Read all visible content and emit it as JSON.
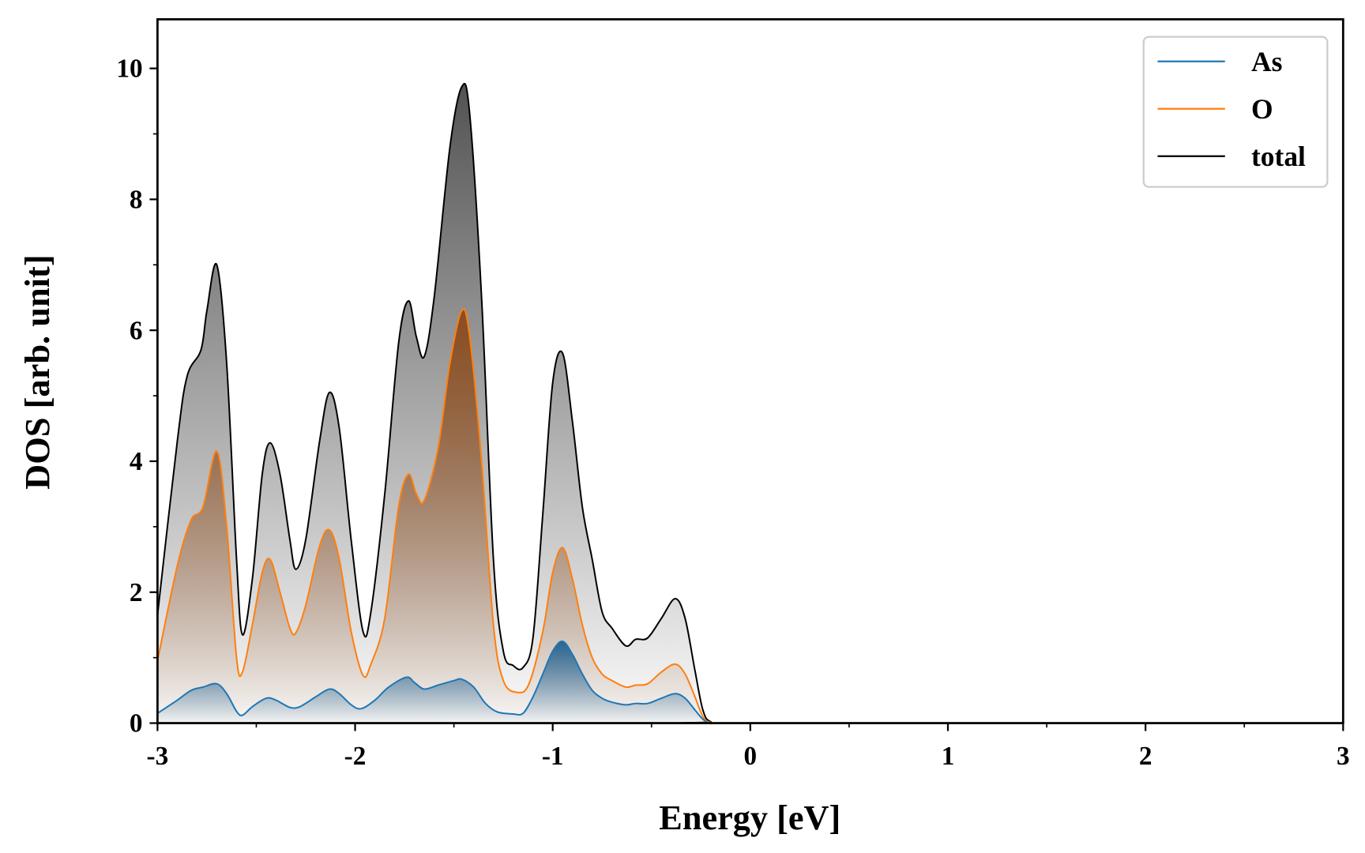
{
  "chart_data": {
    "type": "area",
    "title": "",
    "xlabel": "Energy [eV]",
    "ylabel": "DOS [arb. unit]",
    "xlim": [
      -3,
      3
    ],
    "ylim": [
      0,
      10.75
    ],
    "xticks": [
      -3,
      -2,
      -1,
      0,
      1,
      2,
      3
    ],
    "xtick_labels": [
      "-3",
      "-2",
      "-1",
      "0",
      "1",
      "2",
      "3"
    ],
    "yticks": [
      0,
      2,
      4,
      6,
      8,
      10
    ],
    "ytick_labels": [
      "0",
      "2",
      "4",
      "6",
      "8",
      "10"
    ],
    "grid": false,
    "legend_position": "top-right",
    "series": [
      {
        "name": "As",
        "color": "#1f77b4",
        "fill": "#1f5f8f",
        "x": [
          -3,
          -2.9,
          -2.83,
          -2.77,
          -2.7,
          -2.65,
          -2.6,
          -2.57,
          -2.52,
          -2.45,
          -2.4,
          -2.33,
          -2.28,
          -2.2,
          -2.13,
          -2.08,
          -2.02,
          -1.97,
          -1.9,
          -1.83,
          -1.74,
          -1.7,
          -1.65,
          -1.58,
          -1.5,
          -1.46,
          -1.4,
          -1.34,
          -1.28,
          -1.2,
          -1.15,
          -1.1,
          -1.05,
          -1.0,
          -0.95,
          -0.9,
          -0.85,
          -0.8,
          -0.75,
          -0.7,
          -0.63,
          -0.58,
          -0.52,
          -0.45,
          -0.38,
          -0.33,
          -0.28,
          -0.24,
          -0.2,
          -0.1,
          3
        ],
        "y": [
          0.15,
          0.35,
          0.5,
          0.55,
          0.6,
          0.45,
          0.18,
          0.12,
          0.25,
          0.38,
          0.35,
          0.24,
          0.25,
          0.4,
          0.52,
          0.45,
          0.28,
          0.22,
          0.35,
          0.55,
          0.7,
          0.62,
          0.52,
          0.58,
          0.65,
          0.67,
          0.55,
          0.3,
          0.17,
          0.14,
          0.15,
          0.4,
          0.75,
          1.1,
          1.25,
          1.05,
          0.75,
          0.5,
          0.38,
          0.32,
          0.28,
          0.3,
          0.3,
          0.38,
          0.45,
          0.38,
          0.2,
          0.06,
          0.0,
          0,
          0
        ]
      },
      {
        "name": "O",
        "color": "#ff7f0e",
        "fill": "#8b4a1a",
        "x": [
          -3,
          -2.9,
          -2.83,
          -2.77,
          -2.7,
          -2.65,
          -2.6,
          -2.57,
          -2.52,
          -2.47,
          -2.43,
          -2.38,
          -2.33,
          -2.3,
          -2.25,
          -2.18,
          -2.13,
          -2.08,
          -2.02,
          -1.96,
          -1.92,
          -1.85,
          -1.78,
          -1.73,
          -1.69,
          -1.65,
          -1.58,
          -1.52,
          -1.46,
          -1.42,
          -1.36,
          -1.3,
          -1.25,
          -1.18,
          -1.12,
          -1.05,
          -1.0,
          -0.95,
          -0.9,
          -0.85,
          -0.8,
          -0.75,
          -0.7,
          -0.63,
          -0.58,
          -0.52,
          -0.45,
          -0.38,
          -0.33,
          -0.28,
          -0.24,
          -0.2,
          -0.1,
          3
        ],
        "y": [
          0.95,
          2.4,
          3.1,
          3.3,
          4.15,
          3.0,
          1.0,
          0.78,
          1.5,
          2.3,
          2.5,
          2.0,
          1.45,
          1.38,
          1.8,
          2.7,
          2.95,
          2.5,
          1.4,
          0.73,
          0.9,
          1.6,
          3.3,
          3.8,
          3.5,
          3.4,
          4.2,
          5.5,
          6.3,
          5.9,
          4.0,
          1.5,
          0.65,
          0.47,
          0.6,
          1.4,
          2.3,
          2.68,
          2.2,
          1.5,
          1.0,
          0.75,
          0.65,
          0.55,
          0.58,
          0.6,
          0.78,
          0.9,
          0.75,
          0.4,
          0.1,
          0.01,
          0,
          0
        ]
      },
      {
        "name": "total",
        "color": "#000000",
        "fill": "#4a4a4a",
        "x": [
          -3,
          -2.9,
          -2.85,
          -2.78,
          -2.75,
          -2.7,
          -2.65,
          -2.6,
          -2.57,
          -2.52,
          -2.47,
          -2.43,
          -2.38,
          -2.33,
          -2.3,
          -2.25,
          -2.18,
          -2.13,
          -2.08,
          -2.02,
          -1.96,
          -1.92,
          -1.85,
          -1.78,
          -1.73,
          -1.69,
          -1.65,
          -1.6,
          -1.52,
          -1.46,
          -1.42,
          -1.36,
          -1.3,
          -1.25,
          -1.2,
          -1.15,
          -1.1,
          -1.05,
          -1.0,
          -0.95,
          -0.9,
          -0.85,
          -0.8,
          -0.75,
          -0.7,
          -0.63,
          -0.58,
          -0.52,
          -0.45,
          -0.38,
          -0.33,
          -0.28,
          -0.24,
          -0.2,
          -0.1,
          3
        ],
        "y": [
          1.65,
          4.3,
          5.3,
          5.7,
          6.3,
          7.0,
          5.5,
          2.5,
          1.35,
          2.2,
          3.8,
          4.28,
          3.8,
          2.8,
          2.35,
          2.8,
          4.3,
          5.05,
          4.5,
          2.8,
          1.4,
          1.7,
          3.5,
          5.8,
          6.45,
          5.9,
          5.6,
          6.5,
          8.8,
          9.72,
          9.3,
          6.5,
          2.5,
          1.1,
          0.88,
          0.85,
          1.3,
          3.2,
          5.2,
          5.65,
          4.6,
          3.3,
          2.5,
          1.7,
          1.45,
          1.18,
          1.28,
          1.3,
          1.6,
          1.9,
          1.6,
          0.8,
          0.2,
          0.02,
          0,
          0
        ]
      }
    ]
  }
}
